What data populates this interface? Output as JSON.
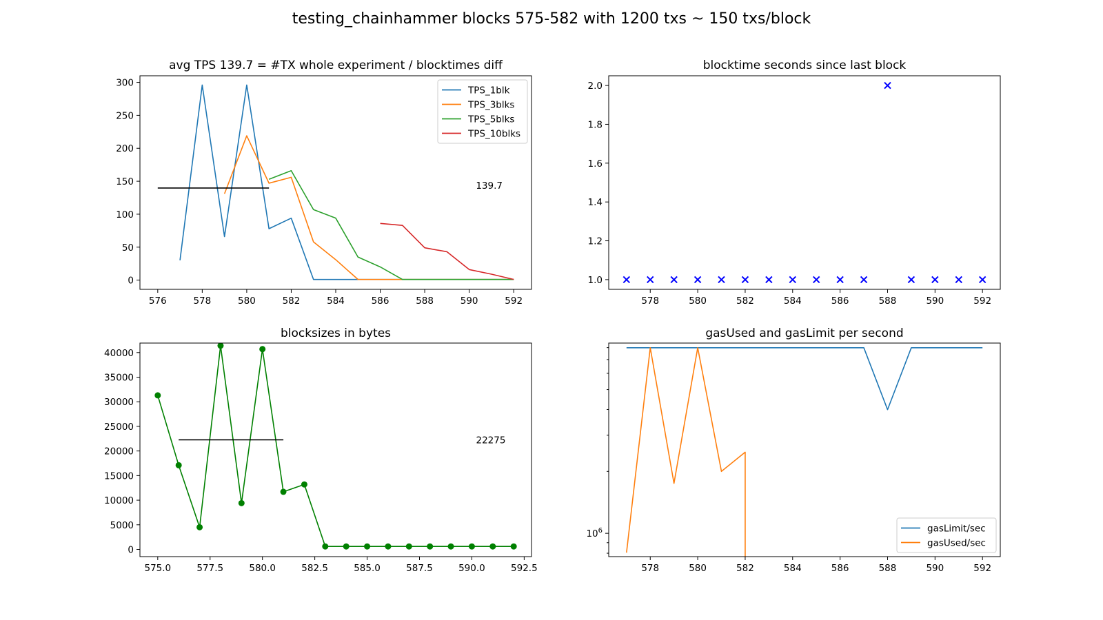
{
  "figure": {
    "suptitle": "testing_chainhammer blocks 575-582 with 1200 txs ~ 150 txs/block"
  },
  "chart_data": [
    {
      "id": "tps",
      "type": "line",
      "title": "avg TPS 139.7 = #TX whole experiment / blocktimes diff",
      "xlim": [
        575.2,
        592.8
      ],
      "ylim": [
        -14,
        310
      ],
      "xticks": [
        576,
        578,
        580,
        582,
        584,
        586,
        588,
        590,
        592
      ],
      "xtick_labels": [
        "576",
        "578",
        "580",
        "582",
        "584",
        "586",
        "588",
        "590",
        "592"
      ],
      "yticks": [
        0,
        50,
        100,
        150,
        200,
        250,
        300
      ],
      "ytick_labels": [
        "0",
        "50",
        "100",
        "150",
        "200",
        "250",
        "300"
      ],
      "legend": "top-right",
      "series": [
        {
          "name": "TPS_1blk",
          "color": "#1f77b4",
          "x": [
            577,
            578,
            579,
            580,
            581,
            582,
            583,
            584,
            585,
            586,
            587,
            588,
            589,
            590,
            591,
            592
          ],
          "y": [
            30,
            296,
            66,
            296,
            78,
            94,
            1,
            1,
            1,
            1,
            1,
            1,
            1,
            1,
            1,
            1
          ]
        },
        {
          "name": "TPS_3blks",
          "color": "#ff7f0e",
          "x": [
            579,
            580,
            581,
            582,
            583,
            584,
            585,
            586,
            587,
            588,
            589,
            590,
            591,
            592
          ],
          "y": [
            131,
            219,
            147,
            156,
            58,
            31,
            1,
            1,
            1,
            1,
            1,
            1,
            1,
            1
          ]
        },
        {
          "name": "TPS_5blks",
          "color": "#2ca02c",
          "x": [
            581,
            582,
            583,
            584,
            585,
            586,
            587,
            588,
            589,
            590,
            591,
            592
          ],
          "y": [
            153,
            166,
            107,
            94,
            35,
            20,
            1,
            1,
            1,
            1,
            1,
            1
          ]
        },
        {
          "name": "TPS_10blks",
          "color": "#d62728",
          "x": [
            586,
            587,
            588,
            589,
            590,
            591,
            592
          ],
          "y": [
            86,
            83,
            49,
            43,
            16,
            9,
            1
          ]
        }
      ],
      "avg_line": {
        "x": [
          576,
          581
        ],
        "y": 139.7,
        "color": "#000000"
      },
      "annotation": {
        "text": "139.7",
        "x": 590.3,
        "y": 144
      }
    },
    {
      "id": "blocktime",
      "type": "scatter",
      "title": "blocktime seconds since last block",
      "xlim": [
        576.25,
        592.75
      ],
      "ylim": [
        0.95,
        2.05
      ],
      "xticks": [
        578,
        580,
        582,
        584,
        586,
        588,
        590,
        592
      ],
      "xtick_labels": [
        "578",
        "580",
        "582",
        "584",
        "586",
        "588",
        "590",
        "592"
      ],
      "yticks": [
        1.0,
        1.2,
        1.4,
        1.6,
        1.8,
        2.0
      ],
      "ytick_labels": [
        "1.0",
        "1.2",
        "1.4",
        "1.6",
        "1.8",
        "2.0"
      ],
      "marker": "x",
      "color": "#0000ff",
      "series": [
        {
          "x": [
            577,
            578,
            579,
            580,
            581,
            582,
            583,
            584,
            585,
            586,
            587,
            588,
            589,
            590,
            591,
            592
          ],
          "y": [
            1,
            1,
            1,
            1,
            1,
            1,
            1,
            1,
            1,
            1,
            1,
            2,
            1,
            1,
            1,
            1
          ]
        }
      ]
    },
    {
      "id": "blocksizes",
      "type": "line",
      "title": "blocksizes in bytes",
      "xlim": [
        574.15,
        592.85
      ],
      "ylim": [
        -1470,
        41930
      ],
      "xticks": [
        575.0,
        577.5,
        580.0,
        582.5,
        585.0,
        587.5,
        590.0,
        592.5
      ],
      "xtick_labels": [
        "575.0",
        "577.5",
        "580.0",
        "582.5",
        "585.0",
        "587.5",
        "590.0",
        "592.5"
      ],
      "yticks": [
        0,
        5000,
        10000,
        15000,
        20000,
        25000,
        30000,
        35000,
        40000
      ],
      "ytick_labels": [
        "0",
        "5000",
        "10000",
        "15000",
        "20000",
        "25000",
        "30000",
        "35000",
        "40000"
      ],
      "marker": "o",
      "color": "#008000",
      "series": [
        {
          "x": [
            575,
            576,
            577,
            578,
            579,
            580,
            581,
            582,
            583,
            584,
            585,
            586,
            587,
            588,
            589,
            590,
            591,
            592
          ],
          "y": [
            31300,
            17100,
            4500,
            41400,
            9400,
            40700,
            11700,
            13200,
            600,
            600,
            600,
            600,
            600,
            600,
            600,
            600,
            600,
            600
          ]
        }
      ],
      "avg_line": {
        "x": [
          576,
          581
        ],
        "y": 22275,
        "color": "#000000"
      },
      "annotation": {
        "text": "22275",
        "x": 590.2,
        "y": 22275
      }
    },
    {
      "id": "gas",
      "type": "line",
      "title": "gasUsed and gasLimit per second",
      "xlim": [
        576.25,
        592.75
      ],
      "ylog": true,
      "ylim": [
        770000,
        8420000
      ],
      "xticks": [
        578,
        580,
        582,
        584,
        586,
        588,
        590,
        592
      ],
      "xtick_labels": [
        "578",
        "580",
        "582",
        "584",
        "586",
        "588",
        "590",
        "592"
      ],
      "ytick_labels": [
        {
          "base": "10",
          "exp": "6",
          "value": 1000000
        }
      ],
      "minor_yticks": [
        800000,
        900000,
        2000000,
        3000000,
        4000000,
        5000000,
        6000000,
        7000000,
        8000000
      ],
      "legend": "lower-right",
      "series": [
        {
          "name": "gasLimit/sec",
          "color": "#1f77b4",
          "x": [
            577,
            578,
            579,
            580,
            581,
            582,
            583,
            584,
            585,
            586,
            587,
            588,
            589,
            590,
            591,
            592
          ],
          "y": [
            7990000,
            7990000,
            7990000,
            7990000,
            7990000,
            7990000,
            7990000,
            7990000,
            7990000,
            7990000,
            7990000,
            3995000,
            7990000,
            7990000,
            7990000,
            7990000
          ]
        },
        {
          "name": "gasUsed/sec",
          "color": "#ff7f0e",
          "x": [
            577,
            578,
            579,
            580,
            581,
            582,
            582
          ],
          "y": [
            805000,
            7990000,
            1750000,
            7990000,
            2000000,
            2480000,
            770000
          ]
        }
      ]
    }
  ]
}
